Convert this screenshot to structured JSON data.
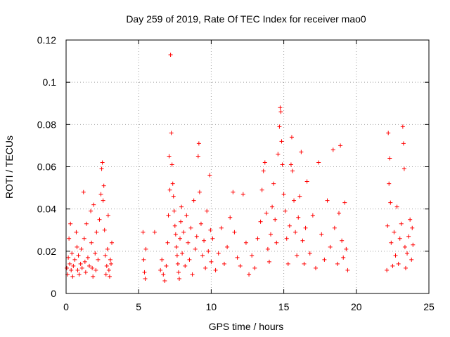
{
  "chart_data": {
    "type": "scatter",
    "title": "Day 259 of 2019, Rate Of TEC Index for receiver mao0",
    "xlabel": "GPS time / hours",
    "ylabel": "ROTI / TECUs",
    "xlim": [
      0,
      25
    ],
    "ylim": [
      0,
      0.12
    ],
    "x_ticks": [
      "0",
      "5",
      "10",
      "15",
      "20",
      "25"
    ],
    "y_ticks": [
      "0",
      "0.02",
      "0.04",
      "0.06",
      "0.08",
      "0.1",
      "0.12"
    ],
    "grid": true,
    "marker": "+",
    "color": "#ff0000",
    "series": [
      {
        "name": "ROTI",
        "points": [
          [
            0.05,
            0.012
          ],
          [
            0.1,
            0.009
          ],
          [
            0.15,
            0.017
          ],
          [
            0.2,
            0.026
          ],
          [
            0.25,
            0.014
          ],
          [
            0.3,
            0.033
          ],
          [
            0.35,
            0.011
          ],
          [
            0.4,
            0.019
          ],
          [
            0.45,
            0.008
          ],
          [
            0.5,
            0.013
          ],
          [
            0.6,
            0.016
          ],
          [
            0.7,
            0.029
          ],
          [
            0.75,
            0.022
          ],
          [
            0.8,
            0.011
          ],
          [
            0.85,
            0.018
          ],
          [
            0.9,
            0.009
          ],
          [
            1.0,
            0.014
          ],
          [
            1.05,
            0.021
          ],
          [
            1.1,
            0.012
          ],
          [
            1.2,
            0.048
          ],
          [
            1.25,
            0.026
          ],
          [
            1.3,
            0.015
          ],
          [
            1.35,
            0.01
          ],
          [
            1.4,
            0.033
          ],
          [
            1.5,
            0.017
          ],
          [
            1.6,
            0.013
          ],
          [
            1.7,
            0.039
          ],
          [
            1.75,
            0.024
          ],
          [
            1.8,
            0.012
          ],
          [
            1.85,
            0.008
          ],
          [
            1.9,
            0.042
          ],
          [
            2.0,
            0.019
          ],
          [
            2.05,
            0.011
          ],
          [
            2.1,
            0.029
          ],
          [
            2.2,
            0.016
          ],
          [
            2.3,
            0.035
          ],
          [
            2.4,
            0.047
          ],
          [
            2.45,
            0.059
          ],
          [
            2.5,
            0.062
          ],
          [
            2.55,
            0.044
          ],
          [
            2.6,
            0.051
          ],
          [
            2.65,
            0.03
          ],
          [
            2.7,
            0.018
          ],
          [
            2.75,
            0.009
          ],
          [
            2.8,
            0.013
          ],
          [
            2.85,
            0.021
          ],
          [
            2.9,
            0.037
          ],
          [
            2.95,
            0.011
          ],
          [
            3.0,
            0.008
          ],
          [
            3.05,
            0.016
          ],
          [
            3.1,
            0.014
          ],
          [
            3.15,
            0.024
          ],
          [
            5.3,
            0.029
          ],
          [
            5.35,
            0.016
          ],
          [
            5.4,
            0.01
          ],
          [
            5.45,
            0.007
          ],
          [
            5.5,
            0.021
          ],
          [
            6.1,
            0.029
          ],
          [
            6.5,
            0.011
          ],
          [
            6.6,
            0.016
          ],
          [
            6.7,
            0.009
          ],
          [
            6.8,
            0.006
          ],
          [
            6.9,
            0.013
          ],
          [
            7.0,
            0.024
          ],
          [
            7.05,
            0.037
          ],
          [
            7.1,
            0.065
          ],
          [
            7.15,
            0.049
          ],
          [
            7.2,
            0.113
          ],
          [
            7.25,
            0.076
          ],
          [
            7.3,
            0.061
          ],
          [
            7.35,
            0.052
          ],
          [
            7.4,
            0.046
          ],
          [
            7.45,
            0.039
          ],
          [
            7.5,
            0.032
          ],
          [
            7.55,
            0.028
          ],
          [
            7.6,
            0.022
          ],
          [
            7.65,
            0.018
          ],
          [
            7.7,
            0.014
          ],
          [
            7.75,
            0.01
          ],
          [
            7.8,
            0.007
          ],
          [
            7.85,
            0.026
          ],
          [
            7.9,
            0.034
          ],
          [
            7.95,
            0.041
          ],
          [
            8.0,
            0.019
          ],
          [
            8.1,
            0.029
          ],
          [
            8.2,
            0.013
          ],
          [
            8.3,
            0.037
          ],
          [
            8.4,
            0.024
          ],
          [
            8.5,
            0.016
          ],
          [
            8.6,
            0.031
          ],
          [
            8.7,
            0.009
          ],
          [
            8.8,
            0.044
          ],
          [
            8.9,
            0.021
          ],
          [
            9.0,
            0.027
          ],
          [
            9.1,
            0.065
          ],
          [
            9.15,
            0.071
          ],
          [
            9.2,
            0.048
          ],
          [
            9.3,
            0.033
          ],
          [
            9.4,
            0.018
          ],
          [
            9.5,
            0.025
          ],
          [
            9.6,
            0.012
          ],
          [
            9.7,
            0.039
          ],
          [
            9.8,
            0.02
          ],
          [
            9.9,
            0.056
          ],
          [
            9.95,
            0.03
          ],
          [
            10.0,
            0.015
          ],
          [
            10.1,
            0.026
          ],
          [
            10.3,
            0.011
          ],
          [
            10.5,
            0.019
          ],
          [
            10.7,
            0.031
          ],
          [
            10.9,
            0.014
          ],
          [
            11.1,
            0.022
          ],
          [
            11.3,
            0.036
          ],
          [
            11.5,
            0.048
          ],
          [
            11.6,
            0.029
          ],
          [
            11.8,
            0.017
          ],
          [
            12.0,
            0.013
          ],
          [
            12.2,
            0.047
          ],
          [
            12.4,
            0.024
          ],
          [
            12.6,
            0.009
          ],
          [
            12.8,
            0.018
          ],
          [
            13.0,
            0.012
          ],
          [
            13.2,
            0.026
          ],
          [
            13.4,
            0.034
          ],
          [
            13.5,
            0.049
          ],
          [
            13.6,
            0.058
          ],
          [
            13.7,
            0.062
          ],
          [
            13.8,
            0.038
          ],
          [
            13.9,
            0.021
          ],
          [
            14.0,
            0.015
          ],
          [
            14.1,
            0.028
          ],
          [
            14.2,
            0.041
          ],
          [
            14.3,
            0.052
          ],
          [
            14.4,
            0.035
          ],
          [
            14.5,
            0.024
          ],
          [
            14.6,
            0.066
          ],
          [
            14.7,
            0.079
          ],
          [
            14.75,
            0.088
          ],
          [
            14.8,
            0.086
          ],
          [
            14.85,
            0.072
          ],
          [
            14.9,
            0.061
          ],
          [
            15.0,
            0.047
          ],
          [
            15.1,
            0.039
          ],
          [
            15.2,
            0.026
          ],
          [
            15.3,
            0.014
          ],
          [
            15.4,
            0.032
          ],
          [
            15.5,
            0.061
          ],
          [
            15.55,
            0.074
          ],
          [
            15.6,
            0.058
          ],
          [
            15.7,
            0.044
          ],
          [
            15.8,
            0.029
          ],
          [
            15.9,
            0.018
          ],
          [
            16.0,
            0.036
          ],
          [
            16.1,
            0.046
          ],
          [
            16.2,
            0.067
          ],
          [
            16.3,
            0.025
          ],
          [
            16.4,
            0.014
          ],
          [
            16.5,
            0.031
          ],
          [
            16.6,
            0.053
          ],
          [
            16.8,
            0.019
          ],
          [
            17.0,
            0.037
          ],
          [
            17.2,
            0.012
          ],
          [
            17.4,
            0.062
          ],
          [
            17.6,
            0.028
          ],
          [
            17.8,
            0.016
          ],
          [
            18.0,
            0.044
          ],
          [
            18.2,
            0.022
          ],
          [
            18.4,
            0.068
          ],
          [
            18.5,
            0.031
          ],
          [
            18.7,
            0.014
          ],
          [
            18.8,
            0.038
          ],
          [
            18.9,
            0.07
          ],
          [
            19.0,
            0.025
          ],
          [
            19.1,
            0.017
          ],
          [
            19.2,
            0.043
          ],
          [
            19.3,
            0.021
          ],
          [
            19.4,
            0.011
          ],
          [
            22.1,
            0.011
          ],
          [
            22.15,
            0.032
          ],
          [
            22.2,
            0.076
          ],
          [
            22.25,
            0.052
          ],
          [
            22.3,
            0.064
          ],
          [
            22.35,
            0.043
          ],
          [
            22.4,
            0.024
          ],
          [
            22.5,
            0.013
          ],
          [
            22.6,
            0.029
          ],
          [
            22.7,
            0.018
          ],
          [
            22.8,
            0.041
          ],
          [
            22.9,
            0.014
          ],
          [
            23.0,
            0.026
          ],
          [
            23.1,
            0.033
          ],
          [
            23.2,
            0.079
          ],
          [
            23.25,
            0.071
          ],
          [
            23.3,
            0.059
          ],
          [
            23.35,
            0.022
          ],
          [
            23.4,
            0.012
          ],
          [
            23.5,
            0.019
          ],
          [
            23.6,
            0.027
          ],
          [
            23.7,
            0.035
          ],
          [
            23.8,
            0.016
          ],
          [
            23.85,
            0.031
          ],
          [
            23.9,
            0.023
          ]
        ]
      }
    ]
  }
}
